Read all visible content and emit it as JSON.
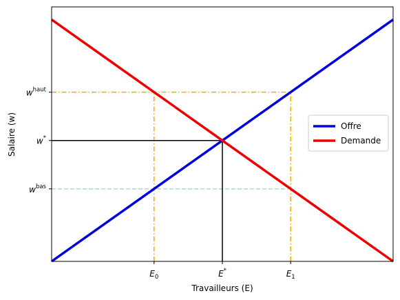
{
  "chart_data": {
    "type": "line",
    "xlabel": "Travailleurs (E)",
    "ylabel": "Salaire (w)",
    "xlim": [
      0,
      10
    ],
    "ylim": [
      0,
      10
    ],
    "series": [
      {
        "name": "Offre",
        "color": "#0000dd",
        "x": [
          0,
          10
        ],
        "y": [
          0,
          9.5
        ]
      },
      {
        "name": "Demande",
        "color": "#ee0000",
        "x": [
          0,
          10
        ],
        "y": [
          9.5,
          0
        ]
      }
    ],
    "x_ticks": [
      {
        "value": 3,
        "base": "E",
        "sub": "0",
        "sup": ""
      },
      {
        "value": 5,
        "base": "E",
        "sub": "",
        "sup": "*"
      },
      {
        "value": 7,
        "base": "E",
        "sub": "1",
        "sup": ""
      }
    ],
    "y_ticks": [
      {
        "value": 2.85,
        "base": "w",
        "sub": "",
        "sup": "bas"
      },
      {
        "value": 4.75,
        "base": "w",
        "sub": "",
        "sup": "*"
      },
      {
        "value": 6.65,
        "base": "w",
        "sub": "",
        "sup": "haut"
      }
    ],
    "reference_lines": [
      {
        "kind": "hline",
        "y": 6.65,
        "x0": 0,
        "x1": 7,
        "style": "dashdot",
        "color": "#ffa500"
      },
      {
        "kind": "vline",
        "x": 3,
        "y0": 0,
        "y1": 6.65,
        "style": "dashdot",
        "color": "#ffa500"
      },
      {
        "kind": "vline",
        "x": 7,
        "y0": 0,
        "y1": 6.65,
        "style": "dashdot",
        "color": "#ffa500"
      },
      {
        "kind": "hline",
        "y": 2.85,
        "x0": 0,
        "x1": 7,
        "style": "dashed",
        "color": "#a8d8ea"
      },
      {
        "kind": "hline",
        "y": 4.75,
        "x0": 0,
        "x1": 5,
        "style": "solid",
        "color": "#000000"
      },
      {
        "kind": "vline",
        "x": 5,
        "y0": 0,
        "y1": 4.75,
        "style": "solid",
        "color": "#000000"
      }
    ],
    "legend_position": "center-right",
    "grid": false
  }
}
